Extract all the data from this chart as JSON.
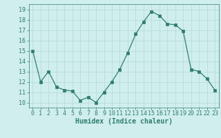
{
  "x": [
    0,
    1,
    2,
    3,
    4,
    5,
    6,
    7,
    8,
    9,
    10,
    11,
    12,
    13,
    14,
    15,
    16,
    17,
    18,
    19,
    20,
    21,
    22,
    23
  ],
  "y": [
    15,
    12,
    13,
    11.5,
    11.2,
    11.1,
    10.2,
    10.5,
    10,
    11,
    12,
    13.2,
    14.8,
    16.6,
    17.8,
    18.8,
    18.4,
    17.6,
    17.5,
    16.9,
    13.2,
    13,
    12.3,
    11.2
  ],
  "line_color": "#2e7d6e",
  "marker_color": "#2e7d6e",
  "bg_color": "#d0eeee",
  "grid_color": "#b8dcdc",
  "xlabel": "Humidex (Indice chaleur)",
  "xlim": [
    -0.5,
    23.5
  ],
  "ylim": [
    9.5,
    19.5
  ],
  "yticks": [
    10,
    11,
    12,
    13,
    14,
    15,
    16,
    17,
    18,
    19
  ],
  "xticks": [
    0,
    1,
    2,
    3,
    4,
    5,
    6,
    7,
    8,
    9,
    10,
    11,
    12,
    13,
    14,
    15,
    16,
    17,
    18,
    19,
    20,
    21,
    22,
    23
  ],
  "tick_color": "#2e7d6e",
  "xlabel_fontsize": 7,
  "tick_fontsize": 6
}
